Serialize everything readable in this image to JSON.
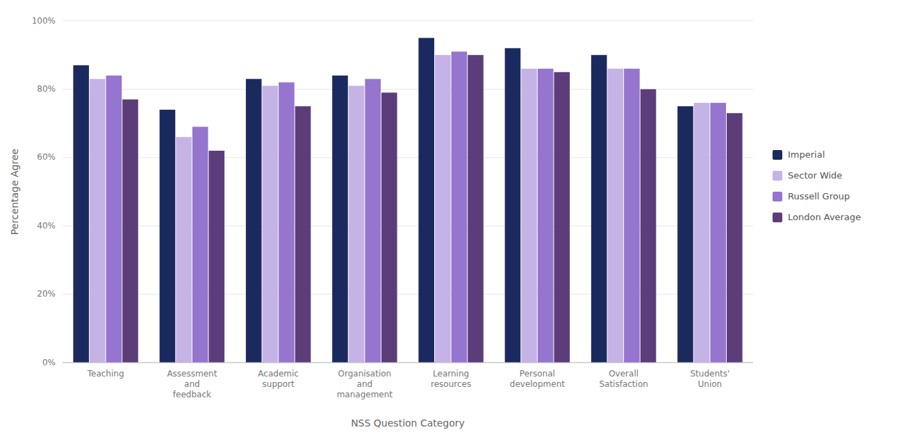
{
  "chart_data": {
    "type": "bar",
    "categories": [
      "Teaching",
      "Assessment\nand\nfeedback",
      "Academic\nsupport",
      "Organisation\nand\nmanagement",
      "Learning\nresources",
      "Personal\ndevelopment",
      "Overall\nSatisfaction",
      "Students'\nUnion"
    ],
    "series": [
      {
        "name": "Imperial",
        "color": "#1b2a5e",
        "values": [
          87,
          74,
          83,
          84,
          95,
          92,
          90,
          75
        ]
      },
      {
        "name": "Sector Wide",
        "color": "#c5b3e6",
        "values": [
          83,
          66,
          81,
          81,
          90,
          86,
          86,
          76
        ]
      },
      {
        "name": "Russell Group",
        "color": "#9575cd",
        "values": [
          84,
          69,
          82,
          83,
          91,
          86,
          86,
          76
        ]
      },
      {
        "name": "London Average",
        "color": "#5c3d7a",
        "values": [
          77,
          62,
          75,
          79,
          90,
          85,
          80,
          73
        ]
      }
    ],
    "xlabel": "NSS Question Category",
    "ylabel": "Percentage Agree",
    "ylim": [
      0,
      100
    ],
    "yticks": [
      {
        "value": 0,
        "label": "0%"
      },
      {
        "value": 20,
        "label": "20%"
      },
      {
        "value": 40,
        "label": "40%"
      },
      {
        "value": 60,
        "label": "60%"
      },
      {
        "value": 80,
        "label": "80%"
      },
      {
        "value": 100,
        "label": "100%"
      }
    ],
    "grid": true,
    "legend": "right"
  }
}
